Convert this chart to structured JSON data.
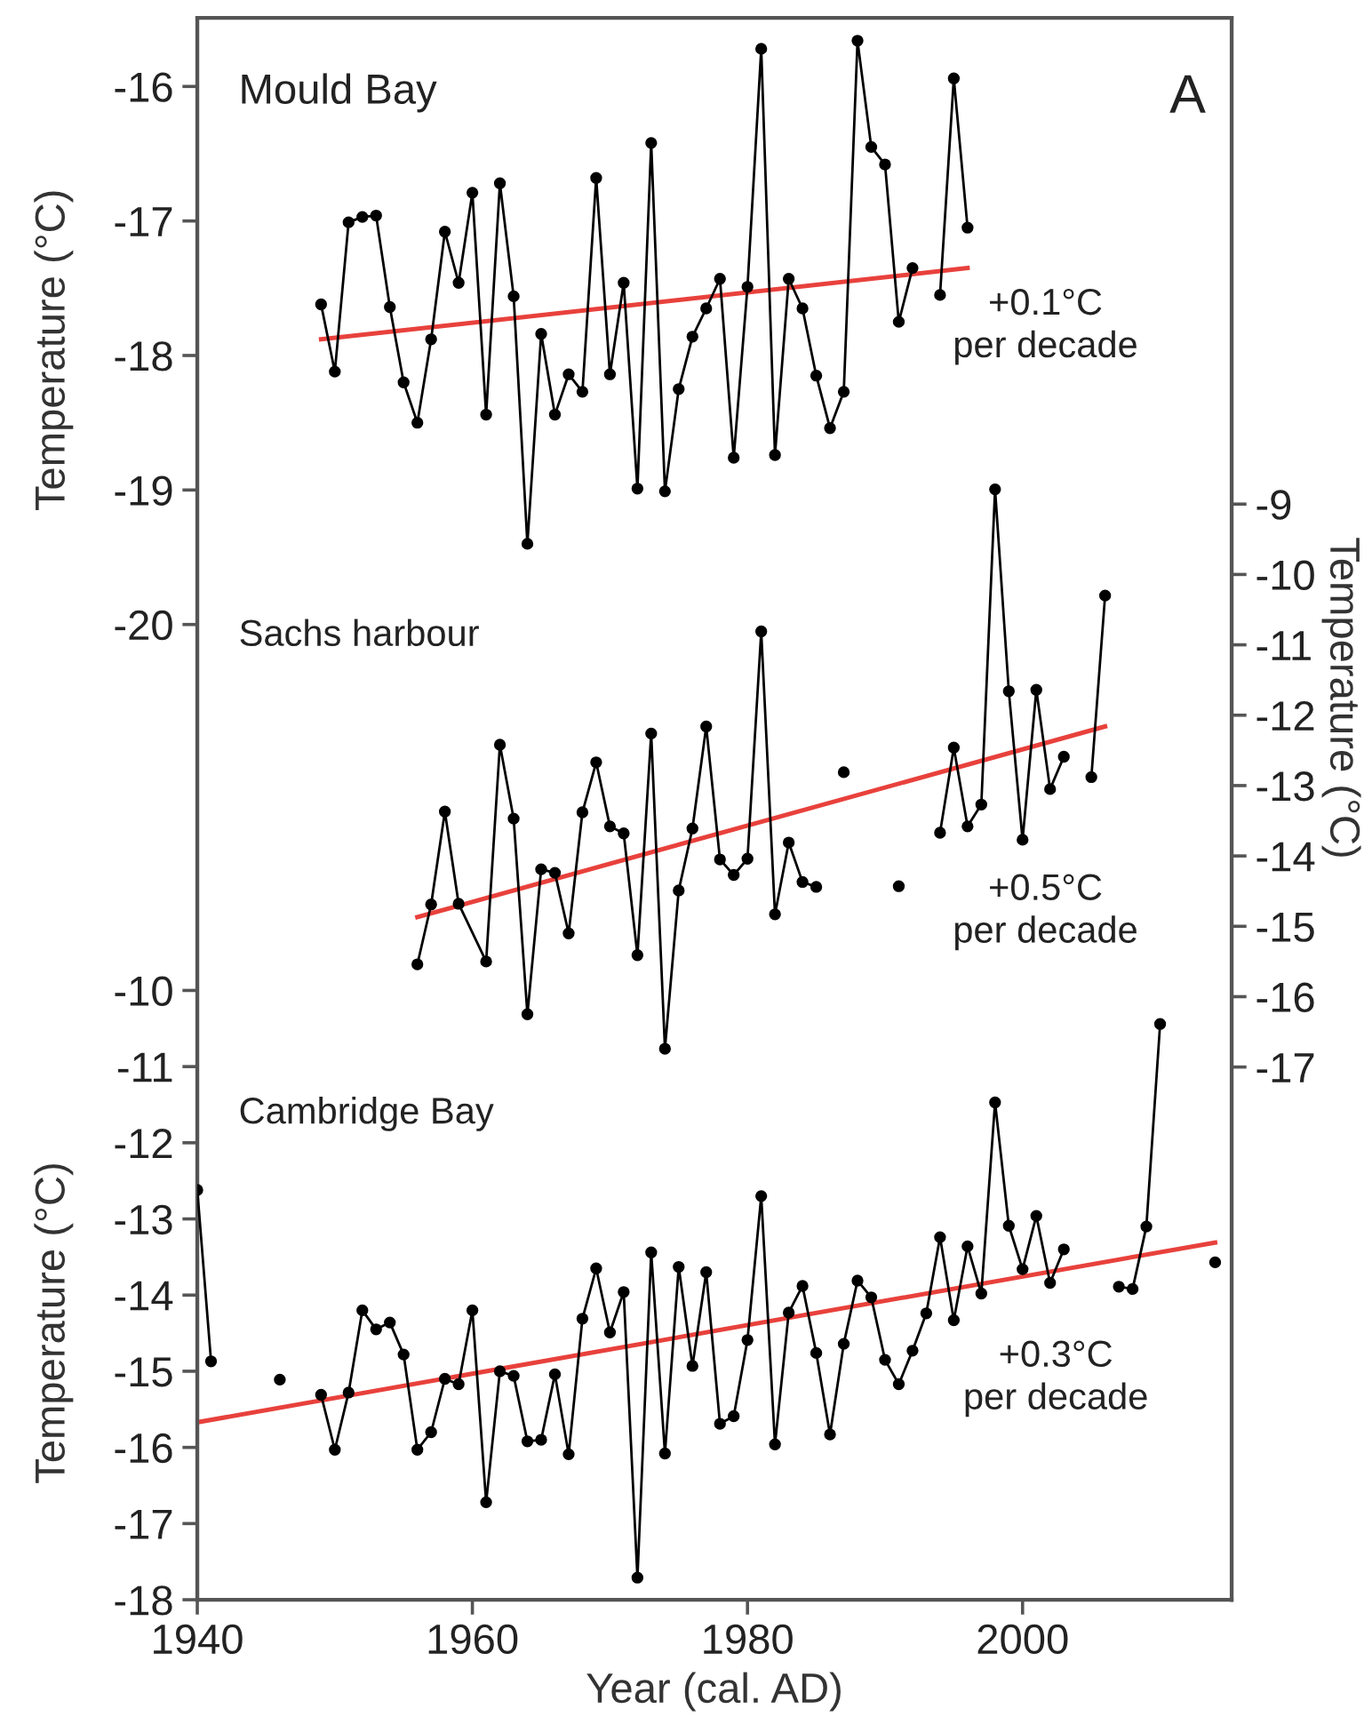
{
  "chart_data": [
    {
      "type": "line",
      "xlim": [
        1940,
        2015.2
      ],
      "ylim": [
        -27.25,
        -15.49
      ],
      "yticks": [
        -16,
        -17,
        -18,
        -19,
        -20
      ],
      "ylabel": "Temperature (°C)",
      "tick_labels": "y",
      "marker": "circle",
      "annotations": [
        "Mould Bay",
        "A",
        "+0.1°C\nper decade"
      ],
      "x": [
        1949,
        1950,
        1951,
        1952,
        1953,
        1954,
        1955,
        1956,
        1957,
        1958,
        1959,
        1960,
        1961,
        1962,
        1963,
        1964,
        1965,
        1966,
        1967,
        1968,
        1969,
        1970,
        1971,
        1972,
        1973,
        1974,
        1975,
        1976,
        1977,
        1978,
        1979,
        1980,
        1981,
        1982,
        1983,
        1984,
        1985,
        1986,
        1987,
        1988,
        1989,
        1990,
        1991,
        1992,
        1993,
        1994,
        1995,
        1996
      ],
      "series": [
        {
          "color": "#000000",
          "values": [
            -17.62,
            -18.12,
            -17.01,
            -16.97,
            -16.96,
            -17.64,
            -18.2,
            -18.5,
            -17.88,
            -17.08,
            -17.46,
            -16.79,
            -18.44,
            -16.72,
            -17.56,
            -19.4,
            -17.84,
            -18.44,
            -18.14,
            -18.27,
            -16.68,
            -18.14,
            -17.46,
            -18.99,
            -16.42,
            -19.01,
            -18.25,
            -17.86,
            -17.65,
            -17.43,
            -18.76,
            -17.49,
            -15.72,
            -18.74,
            -17.43,
            -17.65,
            -18.15,
            -18.54,
            -18.27,
            -15.66,
            -16.45,
            -16.58,
            -17.75,
            -17.35,
            null,
            -17.55,
            -15.94,
            -17.05
          ]
        },
        {
          "type": "line",
          "marker": "none",
          "color": "#e8413c",
          "x": [
            1949,
            1996
          ],
          "values": [
            -17.88,
            -17.35
          ]
        }
      ]
    },
    {
      "type": "line",
      "xlim": [
        1940,
        2015.2
      ],
      "y2lim": [
        -24.57,
        -2.09
      ],
      "y2ticks": [
        -9,
        -10,
        -11,
        -12,
        -13,
        -14,
        -15,
        -16,
        -17
      ],
      "y2label": "Temperature (°C)",
      "tick_labels": "y",
      "marker": "circle",
      "annotations": [
        "Sachs harbour",
        "+0.5°C\nper decade"
      ],
      "x": [
        1956,
        1957,
        1958,
        1959,
        1961,
        1962,
        1963,
        1964,
        1965,
        1966,
        1967,
        1968,
        1969,
        1970,
        1971,
        1972,
        1973,
        1974,
        1975,
        1976,
        1977,
        1978,
        1979,
        1980,
        1981,
        1982,
        1983,
        1984,
        1985,
        1986,
        1987,
        1988,
        1991,
        1992,
        1994,
        1995,
        1996,
        1997,
        1998,
        1999,
        2000,
        2001,
        2002,
        2003,
        2004,
        2005,
        2006
      ],
      "series": [
        {
          "color": "#000000",
          "axis": "y2",
          "values": [
            -15.54,
            -14.69,
            -13.37,
            -14.68,
            -15.5,
            -12.42,
            -13.47,
            -16.25,
            -14.19,
            -14.24,
            -15.1,
            -13.38,
            -12.67,
            -13.58,
            -13.68,
            -15.41,
            -12.26,
            -16.74,
            -14.49,
            -13.61,
            -12.16,
            -14.05,
            -14.27,
            -14.04,
            -10.81,
            -14.83,
            -13.81,
            -14.37,
            -14.44,
            null,
            -12.81,
            null,
            -14.43,
            null,
            -13.67,
            -12.46,
            -13.58,
            -13.27,
            -8.79,
            -11.66,
            -13.77,
            -11.64,
            -13.05,
            -12.59,
            null,
            -12.88,
            -10.3
          ]
        },
        {
          "type": "line",
          "marker": "none",
          "axis": "y2",
          "color": "#e8413c",
          "x": [
            1956,
            2006
          ],
          "values": [
            -14.87,
            -12.16
          ]
        }
      ]
    },
    {
      "type": "line",
      "xlim": [
        1940,
        2015.2
      ],
      "xticks": [
        1940,
        1960,
        1980,
        2000
      ],
      "xlabel": "Year (cal. AD)",
      "ylim": [
        -18,
        2.77
      ],
      "yticks": [
        -10,
        -11,
        -12,
        -13,
        -14,
        -15,
        -16,
        -17,
        -18
      ],
      "ylabel": "Temperature (°C)",
      "marker": "circle",
      "annotations": [
        "Cambridge Bay",
        "+0.3°C\nper decade"
      ],
      "x": [
        1940,
        1941,
        1942,
        1946,
        1947,
        1949,
        1950,
        1951,
        1952,
        1953,
        1954,
        1955,
        1956,
        1957,
        1958,
        1959,
        1960,
        1961,
        1962,
        1963,
        1964,
        1965,
        1966,
        1967,
        1968,
        1969,
        1970,
        1971,
        1972,
        1973,
        1974,
        1975,
        1976,
        1977,
        1978,
        1979,
        1980,
        1981,
        1982,
        1983,
        1984,
        1985,
        1986,
        1987,
        1988,
        1989,
        1990,
        1991,
        1992,
        1993,
        1994,
        1995,
        1996,
        1997,
        1998,
        1999,
        2000,
        2001,
        2002,
        2003,
        2004,
        2007,
        2008,
        2009,
        2010,
        2011,
        2014
      ],
      "series": [
        {
          "color": "#000000",
          "values": [
            -12.62,
            -14.87,
            null,
            -15.11,
            null,
            -15.31,
            -16.03,
            -15.28,
            -14.2,
            -14.45,
            -14.36,
            -14.78,
            -16.03,
            -15.8,
            -15.1,
            -15.17,
            -14.2,
            -16.72,
            -15.0,
            -15.06,
            -15.92,
            -15.9,
            -15.04,
            -16.09,
            -14.31,
            -13.65,
            -14.49,
            -13.96,
            -17.71,
            -13.44,
            -16.08,
            -13.63,
            -14.93,
            -13.7,
            -15.69,
            -15.59,
            -14.59,
            -12.7,
            -15.96,
            -14.23,
            -13.88,
            -14.76,
            -15.83,
            -14.64,
            -13.81,
            -14.03,
            -14.85,
            -15.17,
            -14.73,
            -14.24,
            -13.24,
            -14.33,
            -13.36,
            -13.98,
            -11.47,
            -13.09,
            -13.66,
            -12.96,
            -13.84,
            -13.4,
            null,
            -13.89,
            -13.92,
            -13.1,
            -10.44,
            null,
            -13.57
          ]
        },
        {
          "type": "line",
          "marker": "none",
          "color": "#e8413c",
          "x": [
            1940,
            2014
          ],
          "values": [
            -15.67,
            -13.31
          ]
        }
      ]
    }
  ]
}
